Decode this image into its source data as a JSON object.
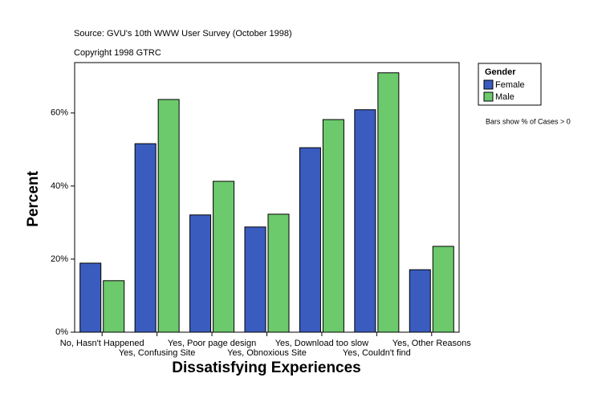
{
  "chart_data": {
    "type": "bar",
    "source": "Source: GVU's 10th WWW User Survey (October 1998)",
    "copyright": "Copyright 1998 GTRC",
    "x_label": "Dissatisfying Experiences",
    "y_label": "Percent",
    "note": "Bars show % of Cases > 0",
    "legend_title": "Gender",
    "legend": "top-right-outside",
    "categories": [
      "No, Hasn't Happened",
      "Yes, Confusing Site",
      "Yes, Poor page design",
      "Yes, Obnoxious Site",
      "Yes, Download too slow",
      "Yes, Couldn't find",
      "Yes, Other Reasons"
    ],
    "series": [
      {
        "name": "Female",
        "color": "#3a5cbf",
        "values": [
          18.9,
          51.6,
          32.1,
          28.8,
          50.5,
          60.9,
          17.1
        ]
      },
      {
        "name": "Male",
        "color": "#6cc96c",
        "values": [
          14.1,
          63.7,
          41.3,
          32.3,
          58.2,
          71.0,
          23.5
        ]
      }
    ],
    "ylim": [
      0,
      73.8
    ],
    "yticks": [
      {
        "value": 0,
        "label": "0%"
      },
      {
        "value": 20,
        "label": "20%"
      },
      {
        "value": 40,
        "label": "40%"
      },
      {
        "value": 60,
        "label": "60%"
      }
    ],
    "grid": false
  }
}
